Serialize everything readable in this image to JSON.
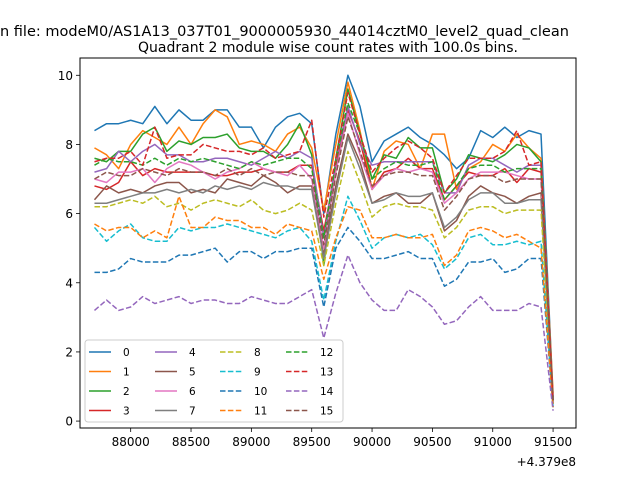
{
  "chart_data": {
    "type": "line",
    "suptitle": "n file: modeM0/AS1A13_037T01_9000005930_44014cztM0_level2_quad_clean",
    "title": "Quadrant 2 module wise count rates with 100.0s bins.",
    "xlabel": "",
    "ylabel": "",
    "x_offset_label": "+4.379e8",
    "x_ticks": [
      "88000",
      "88500",
      "89000",
      "89500",
      "90000",
      "90500",
      "91000",
      "91500"
    ],
    "y_ticks": [
      "0",
      "2",
      "4",
      "6",
      "8",
      "10"
    ],
    "xlim": [
      87580,
      91690
    ],
    "ylim": [
      -0.2,
      10.5
    ],
    "grid": false,
    "legend": {
      "placement": "lower-left",
      "columns": 4
    },
    "x": [
      87700,
      87800,
      87900,
      88000,
      88100,
      88200,
      88300,
      88400,
      88500,
      88600,
      88700,
      88800,
      88900,
      89000,
      89100,
      89200,
      89300,
      89400,
      89500,
      89600,
      89700,
      89800,
      89900,
      90000,
      90100,
      90200,
      90300,
      90400,
      90500,
      90600,
      90700,
      90800,
      90900,
      91000,
      91100,
      91200,
      91300,
      91400,
      91500
    ],
    "series": [
      {
        "name": "0",
        "color": "#1f77b4",
        "dash": "solid",
        "values": [
          8.4,
          8.6,
          8.6,
          8.7,
          8.6,
          9.1,
          8.6,
          9.0,
          8.7,
          8.7,
          9.0,
          9.0,
          8.5,
          8.5,
          7.9,
          8.5,
          8.8,
          8.9,
          8.6,
          6.0,
          8.3,
          10.0,
          9.1,
          7.5,
          8.1,
          8.3,
          8.5,
          8.2,
          8.0,
          7.7,
          7.3,
          7.6,
          8.4,
          8.2,
          8.5,
          8.2,
          8.4,
          8.3,
          0.7
        ]
      },
      {
        "name": "1",
        "color": "#ff7f0e",
        "dash": "solid",
        "values": [
          7.9,
          7.7,
          7.3,
          8.0,
          8.4,
          8.2,
          8.0,
          8.5,
          8.0,
          8.6,
          9.0,
          8.8,
          8.0,
          8.1,
          8.0,
          7.8,
          8.3,
          8.5,
          7.9,
          6.1,
          8.0,
          9.8,
          8.4,
          6.7,
          7.8,
          8.1,
          8.0,
          7.3,
          8.3,
          8.3,
          6.7,
          7.3,
          7.5,
          8.0,
          7.8,
          8.3,
          7.9,
          7.6,
          0.8
        ]
      },
      {
        "name": "2",
        "color": "#2ca02c",
        "dash": "solid",
        "values": [
          7.6,
          7.5,
          7.8,
          7.8,
          8.3,
          8.5,
          7.8,
          8.1,
          8.0,
          8.2,
          8.2,
          8.3,
          7.9,
          7.8,
          7.8,
          7.6,
          8.0,
          8.6,
          7.7,
          4.5,
          7.6,
          9.6,
          8.3,
          7.0,
          7.7,
          7.6,
          8.2,
          7.9,
          7.9,
          6.6,
          7.0,
          7.7,
          7.6,
          7.5,
          7.7,
          8.0,
          7.9,
          7.5,
          0.6
        ]
      },
      {
        "name": "3",
        "color": "#d62728",
        "dash": "solid",
        "values": [
          6.8,
          6.7,
          6.9,
          7.5,
          7.1,
          7.3,
          7.2,
          7.2,
          7.2,
          7.2,
          7.1,
          7.1,
          7.2,
          7.2,
          7.3,
          7.2,
          7.2,
          7.4,
          7.4,
          5.5,
          7.3,
          9.0,
          8.1,
          6.7,
          7.2,
          7.3,
          7.6,
          7.3,
          7.3,
          6.4,
          6.8,
          7.2,
          7.1,
          7.1,
          7.3,
          6.9,
          7.3,
          7.2,
          0.6
        ]
      },
      {
        "name": "4",
        "color": "#9467bd",
        "dash": "solid",
        "values": [
          7.2,
          7.3,
          7.8,
          7.5,
          7.8,
          8.0,
          7.7,
          7.7,
          7.5,
          7.5,
          7.6,
          7.6,
          7.5,
          7.4,
          7.6,
          7.8,
          7.6,
          7.8,
          7.6,
          5.3,
          7.5,
          9.1,
          8.0,
          7.4,
          7.5,
          7.5,
          7.5,
          7.5,
          7.5,
          6.6,
          6.6,
          7.4,
          7.6,
          7.6,
          7.4,
          7.2,
          7.4,
          7.4,
          0.6
        ]
      },
      {
        "name": "5",
        "color": "#8c564b",
        "dash": "solid",
        "values": [
          6.4,
          6.8,
          6.6,
          6.7,
          6.6,
          6.8,
          6.9,
          6.9,
          6.6,
          6.7,
          6.6,
          7.0,
          6.9,
          6.8,
          7.1,
          6.9,
          6.6,
          6.8,
          6.8,
          4.8,
          6.8,
          8.3,
          7.5,
          6.3,
          6.5,
          6.6,
          6.3,
          6.3,
          6.6,
          5.5,
          5.8,
          6.5,
          6.8,
          6.6,
          6.5,
          6.3,
          6.5,
          6.6,
          0.5
        ]
      },
      {
        "name": "6",
        "color": "#e377c2",
        "dash": "solid",
        "values": [
          7.0,
          6.9,
          7.2,
          7.2,
          7.3,
          6.9,
          7.3,
          7.5,
          7.4,
          7.2,
          7.0,
          7.2,
          7.3,
          7.5,
          7.3,
          7.2,
          7.1,
          7.4,
          7.0,
          5.0,
          7.2,
          8.9,
          7.7,
          6.7,
          7.1,
          7.3,
          7.2,
          7.3,
          7.2,
          6.3,
          6.6,
          7.0,
          7.2,
          7.2,
          7.2,
          7.1,
          7.0,
          7.0,
          0.6
        ]
      },
      {
        "name": "7",
        "color": "#7f7f7f",
        "dash": "solid",
        "values": [
          6.3,
          6.3,
          6.4,
          6.5,
          6.6,
          6.6,
          6.7,
          6.6,
          6.7,
          6.6,
          6.8,
          6.7,
          6.8,
          6.7,
          6.9,
          6.8,
          6.8,
          6.7,
          6.7,
          4.7,
          6.6,
          8.2,
          7.3,
          6.3,
          6.4,
          6.6,
          6.5,
          6.5,
          6.6,
          5.6,
          5.9,
          6.4,
          6.6,
          6.6,
          6.3,
          6.3,
          6.4,
          6.4,
          0.5
        ]
      },
      {
        "name": "8",
        "color": "#bcbd22",
        "dash": "dashed",
        "values": [
          6.2,
          6.2,
          6.3,
          6.4,
          6.3,
          6.5,
          6.2,
          6.3,
          6.1,
          6.3,
          6.4,
          6.3,
          6.2,
          6.4,
          6.1,
          6.0,
          6.1,
          6.3,
          6.1,
          4.5,
          6.3,
          7.8,
          6.9,
          5.9,
          6.2,
          6.3,
          6.2,
          6.2,
          6.1,
          5.3,
          5.6,
          6.1,
          6.2,
          6.2,
          6.0,
          6.1,
          6.1,
          6.1,
          0.5
        ]
      },
      {
        "name": "9",
        "color": "#17becf",
        "dash": "dashed",
        "values": [
          5.6,
          5.2,
          5.5,
          5.7,
          5.3,
          5.2,
          5.2,
          5.6,
          5.5,
          5.6,
          5.6,
          5.7,
          5.6,
          5.5,
          5.4,
          5.3,
          5.5,
          5.6,
          5.2,
          3.5,
          5.2,
          6.5,
          5.8,
          5.0,
          5.3,
          5.4,
          5.3,
          5.4,
          5.1,
          4.4,
          4.7,
          5.3,
          5.4,
          5.1,
          5.1,
          5.2,
          5.1,
          5.2,
          0.4
        ]
      },
      {
        "name": "10",
        "color": "#1f77b4",
        "dash": "dashed",
        "values": [
          4.3,
          4.3,
          4.4,
          4.7,
          4.6,
          4.6,
          4.6,
          4.8,
          4.8,
          4.9,
          5.0,
          4.6,
          4.9,
          4.9,
          4.7,
          4.9,
          4.9,
          5.0,
          5.0,
          3.3,
          5.0,
          5.6,
          5.2,
          4.7,
          4.7,
          4.8,
          4.9,
          4.7,
          4.7,
          3.9,
          4.1,
          4.6,
          4.6,
          4.7,
          4.3,
          4.4,
          4.7,
          4.7,
          0.4
        ]
      },
      {
        "name": "11",
        "color": "#ff7f0e",
        "dash": "dashed",
        "values": [
          5.7,
          5.5,
          5.6,
          5.6,
          5.3,
          5.5,
          5.3,
          6.5,
          5.6,
          5.6,
          5.9,
          5.8,
          5.8,
          5.6,
          5.6,
          5.4,
          5.7,
          5.6,
          5.5,
          4.1,
          5.3,
          6.2,
          6.1,
          5.3,
          5.3,
          5.4,
          5.3,
          5.3,
          5.4,
          4.5,
          4.8,
          5.5,
          5.6,
          5.5,
          5.3,
          5.4,
          5.2,
          5.0,
          0.4
        ]
      },
      {
        "name": "12",
        "color": "#2ca02c",
        "dash": "dashed",
        "values": [
          7.4,
          7.6,
          7.5,
          7.5,
          7.4,
          7.6,
          7.4,
          7.6,
          7.5,
          7.6,
          7.5,
          7.4,
          7.3,
          7.5,
          7.4,
          7.5,
          7.6,
          7.6,
          7.3,
          5.3,
          7.5,
          9.2,
          8.3,
          7.0,
          7.3,
          7.5,
          7.4,
          7.4,
          7.5,
          6.4,
          6.8,
          7.3,
          7.4,
          7.4,
          7.2,
          7.3,
          7.3,
          7.3,
          0.6
        ]
      },
      {
        "name": "13",
        "color": "#d62728",
        "dash": "dashed",
        "values": [
          7.5,
          7.6,
          7.6,
          7.8,
          7.4,
          8.5,
          7.6,
          7.7,
          7.7,
          8.0,
          7.9,
          7.8,
          7.8,
          7.7,
          7.9,
          7.6,
          7.7,
          7.8,
          8.7,
          5.9,
          7.6,
          9.5,
          8.3,
          7.2,
          7.6,
          7.9,
          8.1,
          7.9,
          7.6,
          6.6,
          7.1,
          7.6,
          7.6,
          7.6,
          7.8,
          8.4,
          7.4,
          7.5,
          0.6
        ]
      },
      {
        "name": "14",
        "color": "#9467bd",
        "dash": "dashed",
        "values": [
          3.2,
          3.5,
          3.2,
          3.3,
          3.6,
          3.4,
          3.5,
          3.6,
          3.4,
          3.5,
          3.5,
          3.4,
          3.4,
          3.6,
          3.5,
          3.4,
          3.4,
          3.6,
          3.8,
          2.4,
          3.7,
          4.8,
          4.0,
          3.5,
          3.2,
          3.2,
          3.8,
          3.6,
          3.3,
          2.8,
          2.9,
          3.3,
          3.6,
          3.2,
          3.2,
          3.2,
          3.4,
          3.3,
          0.3
        ]
      },
      {
        "name": "15",
        "color": "#8c564b",
        "dash": "dashed",
        "values": [
          7.0,
          7.2,
          7.1,
          7.1,
          7.3,
          7.2,
          7.1,
          7.3,
          7.2,
          7.2,
          7.1,
          7.3,
          7.1,
          7.3,
          7.1,
          7.2,
          7.2,
          7.1,
          7.1,
          5.1,
          7.1,
          8.8,
          7.8,
          6.8,
          7.1,
          7.2,
          7.2,
          7.1,
          7.1,
          6.1,
          6.5,
          7.0,
          7.1,
          7.1,
          6.9,
          7.0,
          7.0,
          7.0,
          0.6
        ]
      }
    ]
  }
}
